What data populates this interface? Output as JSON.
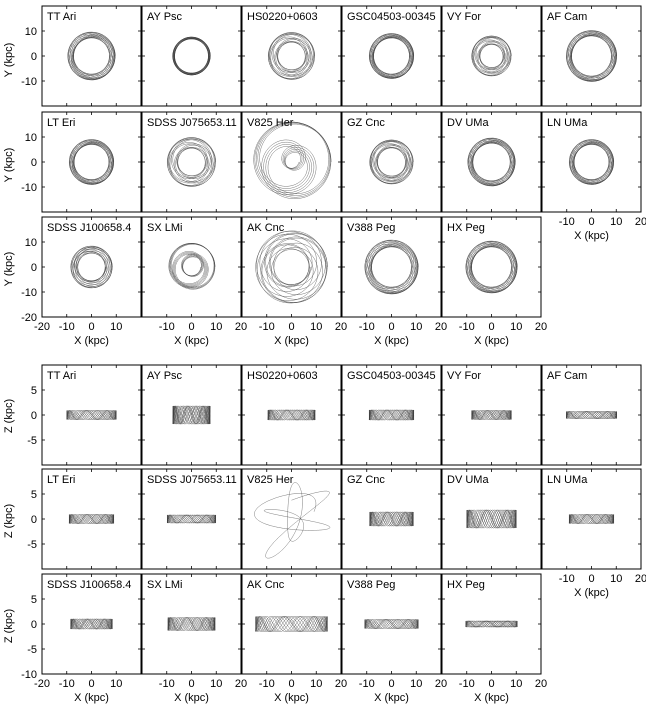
{
  "figure": {
    "top": {
      "ylabel": "Y (kpc)",
      "xlabel": "X (kpc)",
      "y_ticks": [
        "10",
        "0",
        "-10",
        "-20"
      ],
      "x_ticks_first": [
        "-20",
        "-10",
        "0",
        "10"
      ],
      "x_ticks_other": [
        "-10",
        "0",
        "10",
        "20"
      ]
    },
    "bottom": {
      "ylabel": "Z (kpc)",
      "xlabel": "X (kpc)",
      "y_ticks": [
        "5",
        "0",
        "-5",
        "-10"
      ],
      "x_ticks_first": [
        "-20",
        "-10",
        "0",
        "10"
      ],
      "x_ticks_other": [
        "-10",
        "0",
        "10",
        "20"
      ]
    }
  },
  "chart_data": [
    {
      "type": "line",
      "title": "",
      "xlabel": "X (kpc)",
      "ylabel": "Y (kpc)",
      "xlim": [
        -20,
        20
      ],
      "ylim": [
        -20,
        20
      ],
      "panels": [
        {
          "name": "TT Ari",
          "orbit": {
            "rmin": 7.2,
            "rmax": 9.6,
            "lobes": 10
          }
        },
        {
          "name": "AY Psc",
          "orbit": {
            "rmin": 6.8,
            "rmax": 7.6,
            "lobes": 12
          }
        },
        {
          "name": "HS0220+0603",
          "orbit": {
            "rmin": 5.5,
            "rmax": 9.4,
            "lobes": 4
          }
        },
        {
          "name": "GSC04503-00345",
          "orbit": {
            "rmin": 7.2,
            "rmax": 9.0,
            "lobes": 10
          }
        },
        {
          "name": "VY For",
          "orbit": {
            "rmin": 4.6,
            "rmax": 8.0,
            "lobes": 4
          }
        },
        {
          "name": "AF Cam",
          "orbit": {
            "rmin": 8.0,
            "rmax": 10.2,
            "lobes": 10
          }
        },
        {
          "name": "LT Eri",
          "orbit": {
            "rmin": 7.0,
            "rmax": 9.0,
            "lobes": 10
          }
        },
        {
          "name": "SDSS J075653.11",
          "orbit": {
            "rmin": 5.5,
            "rmax": 9.8,
            "lobes": 4
          }
        },
        {
          "name": "V825 Her",
          "orbit": {
            "rmin": 2.5,
            "rmax": 16.0,
            "lobes": 3
          }
        },
        {
          "name": "GZ Cnc",
          "orbit": {
            "rmin": 5.6,
            "rmax": 8.8,
            "lobes": 4
          }
        },
        {
          "name": "DV UMa",
          "orbit": {
            "rmin": 7.5,
            "rmax": 9.6,
            "lobes": 10
          }
        },
        {
          "name": "LN UMa",
          "orbit": {
            "rmin": 7.0,
            "rmax": 9.0,
            "lobes": 10
          }
        },
        {
          "name": "SDSS J100658.4",
          "orbit": {
            "rmin": 5.5,
            "rmax": 8.4,
            "lobes": 5
          }
        },
        {
          "name": "SX LMi",
          "orbit": {
            "rmin": 3.5,
            "rmax": 9.5,
            "lobes": 3
          }
        },
        {
          "name": "AK Cnc",
          "orbit": {
            "rmin": 7.0,
            "rmax": 14.5,
            "lobes": 5
          }
        },
        {
          "name": "V388 Peg",
          "orbit": {
            "rmin": 8.0,
            "rmax": 10.8,
            "lobes": 10
          }
        },
        {
          "name": "HX Peg",
          "orbit": {
            "rmin": 8.0,
            "rmax": 10.4,
            "lobes": 10
          }
        }
      ]
    },
    {
      "type": "line",
      "title": "",
      "xlabel": "X (kpc)",
      "ylabel": "Z (kpc)",
      "xlim": [
        -20,
        20
      ],
      "ylim": [
        -10,
        10
      ],
      "panels": [
        {
          "name": "TT Ari",
          "orbit": {
            "xmax": 10.0,
            "zmax": 0.9
          }
        },
        {
          "name": "AY Psc",
          "orbit": {
            "xmax": 7.5,
            "zmax": 1.8
          }
        },
        {
          "name": "HS0220+0603",
          "orbit": {
            "xmax": 9.5,
            "zmax": 1.0
          }
        },
        {
          "name": "GSC04503-00345",
          "orbit": {
            "xmax": 9.0,
            "zmax": 1.0
          }
        },
        {
          "name": "VY For",
          "orbit": {
            "xmax": 8.0,
            "zmax": 0.9
          }
        },
        {
          "name": "AF Cam",
          "orbit": {
            "xmax": 10.2,
            "zmax": 0.7
          }
        },
        {
          "name": "LT Eri",
          "orbit": {
            "xmax": 9.0,
            "zmax": 0.9
          }
        },
        {
          "name": "SDSS J075653.11",
          "orbit": {
            "xmax": 9.8,
            "zmax": 0.8
          }
        },
        {
          "name": "V825 Her",
          "orbit": {
            "xmax": 16.0,
            "zmax": 8.0
          }
        },
        {
          "name": "GZ Cnc",
          "orbit": {
            "xmax": 8.8,
            "zmax": 1.4
          }
        },
        {
          "name": "DV UMa",
          "orbit": {
            "xmax": 10.0,
            "zmax": 1.8
          }
        },
        {
          "name": "LN UMa",
          "orbit": {
            "xmax": 9.0,
            "zmax": 0.9
          }
        },
        {
          "name": "SDSS J100658.4",
          "orbit": {
            "xmax": 8.4,
            "zmax": 1.0
          }
        },
        {
          "name": "SX LMi",
          "orbit": {
            "xmax": 9.5,
            "zmax": 1.3
          }
        },
        {
          "name": "AK Cnc",
          "orbit": {
            "xmax": 14.5,
            "zmax": 1.5
          }
        },
        {
          "name": "V388 Peg",
          "orbit": {
            "xmax": 10.8,
            "zmax": 0.9
          }
        },
        {
          "name": "HX Peg",
          "orbit": {
            "xmax": 10.4,
            "zmax": 0.6
          }
        }
      ]
    }
  ]
}
